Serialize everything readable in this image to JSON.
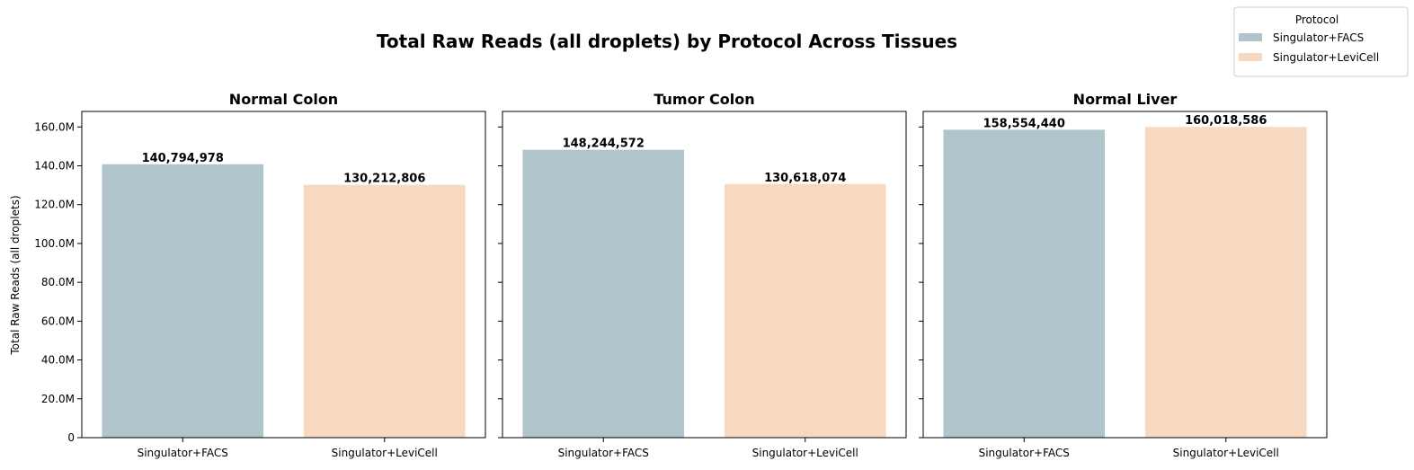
{
  "chart_data": {
    "type": "bar",
    "title": "Total Raw Reads (all droplets) by Protocol Across Tissues",
    "ylabel": "Total Raw Reads (all droplets)",
    "ylim": [
      0,
      168000000
    ],
    "yticks": [
      0,
      20000000,
      40000000,
      60000000,
      80000000,
      100000000,
      120000000,
      140000000,
      160000000
    ],
    "ytick_labels": [
      "0",
      "20.0M",
      "40.0M",
      "60.0M",
      "80.0M",
      "100.0M",
      "120.0M",
      "140.0M",
      "160.0M"
    ],
    "categories": [
      "Singulator+FACS",
      "Singulator+LeviCell"
    ],
    "grid": false,
    "legend": {
      "title": "Protocol",
      "placement": "top-right",
      "entries": [
        "Singulator+FACS",
        "Singulator+LeviCell"
      ]
    },
    "colors": [
      "#b0c4cb",
      "#f6d9c0"
    ],
    "panels": [
      {
        "title": "Normal Colon",
        "values": [
          140794978,
          130212806
        ],
        "labels": [
          "140,794,978",
          "130,212,806"
        ]
      },
      {
        "title": "Tumor Colon",
        "values": [
          148244572,
          130618074
        ],
        "labels": [
          "148,244,572",
          "130,618,074"
        ]
      },
      {
        "title": "Normal Liver",
        "values": [
          158554440,
          160018586
        ],
        "labels": [
          "158,554,440",
          "160,018,586"
        ]
      }
    ]
  }
}
